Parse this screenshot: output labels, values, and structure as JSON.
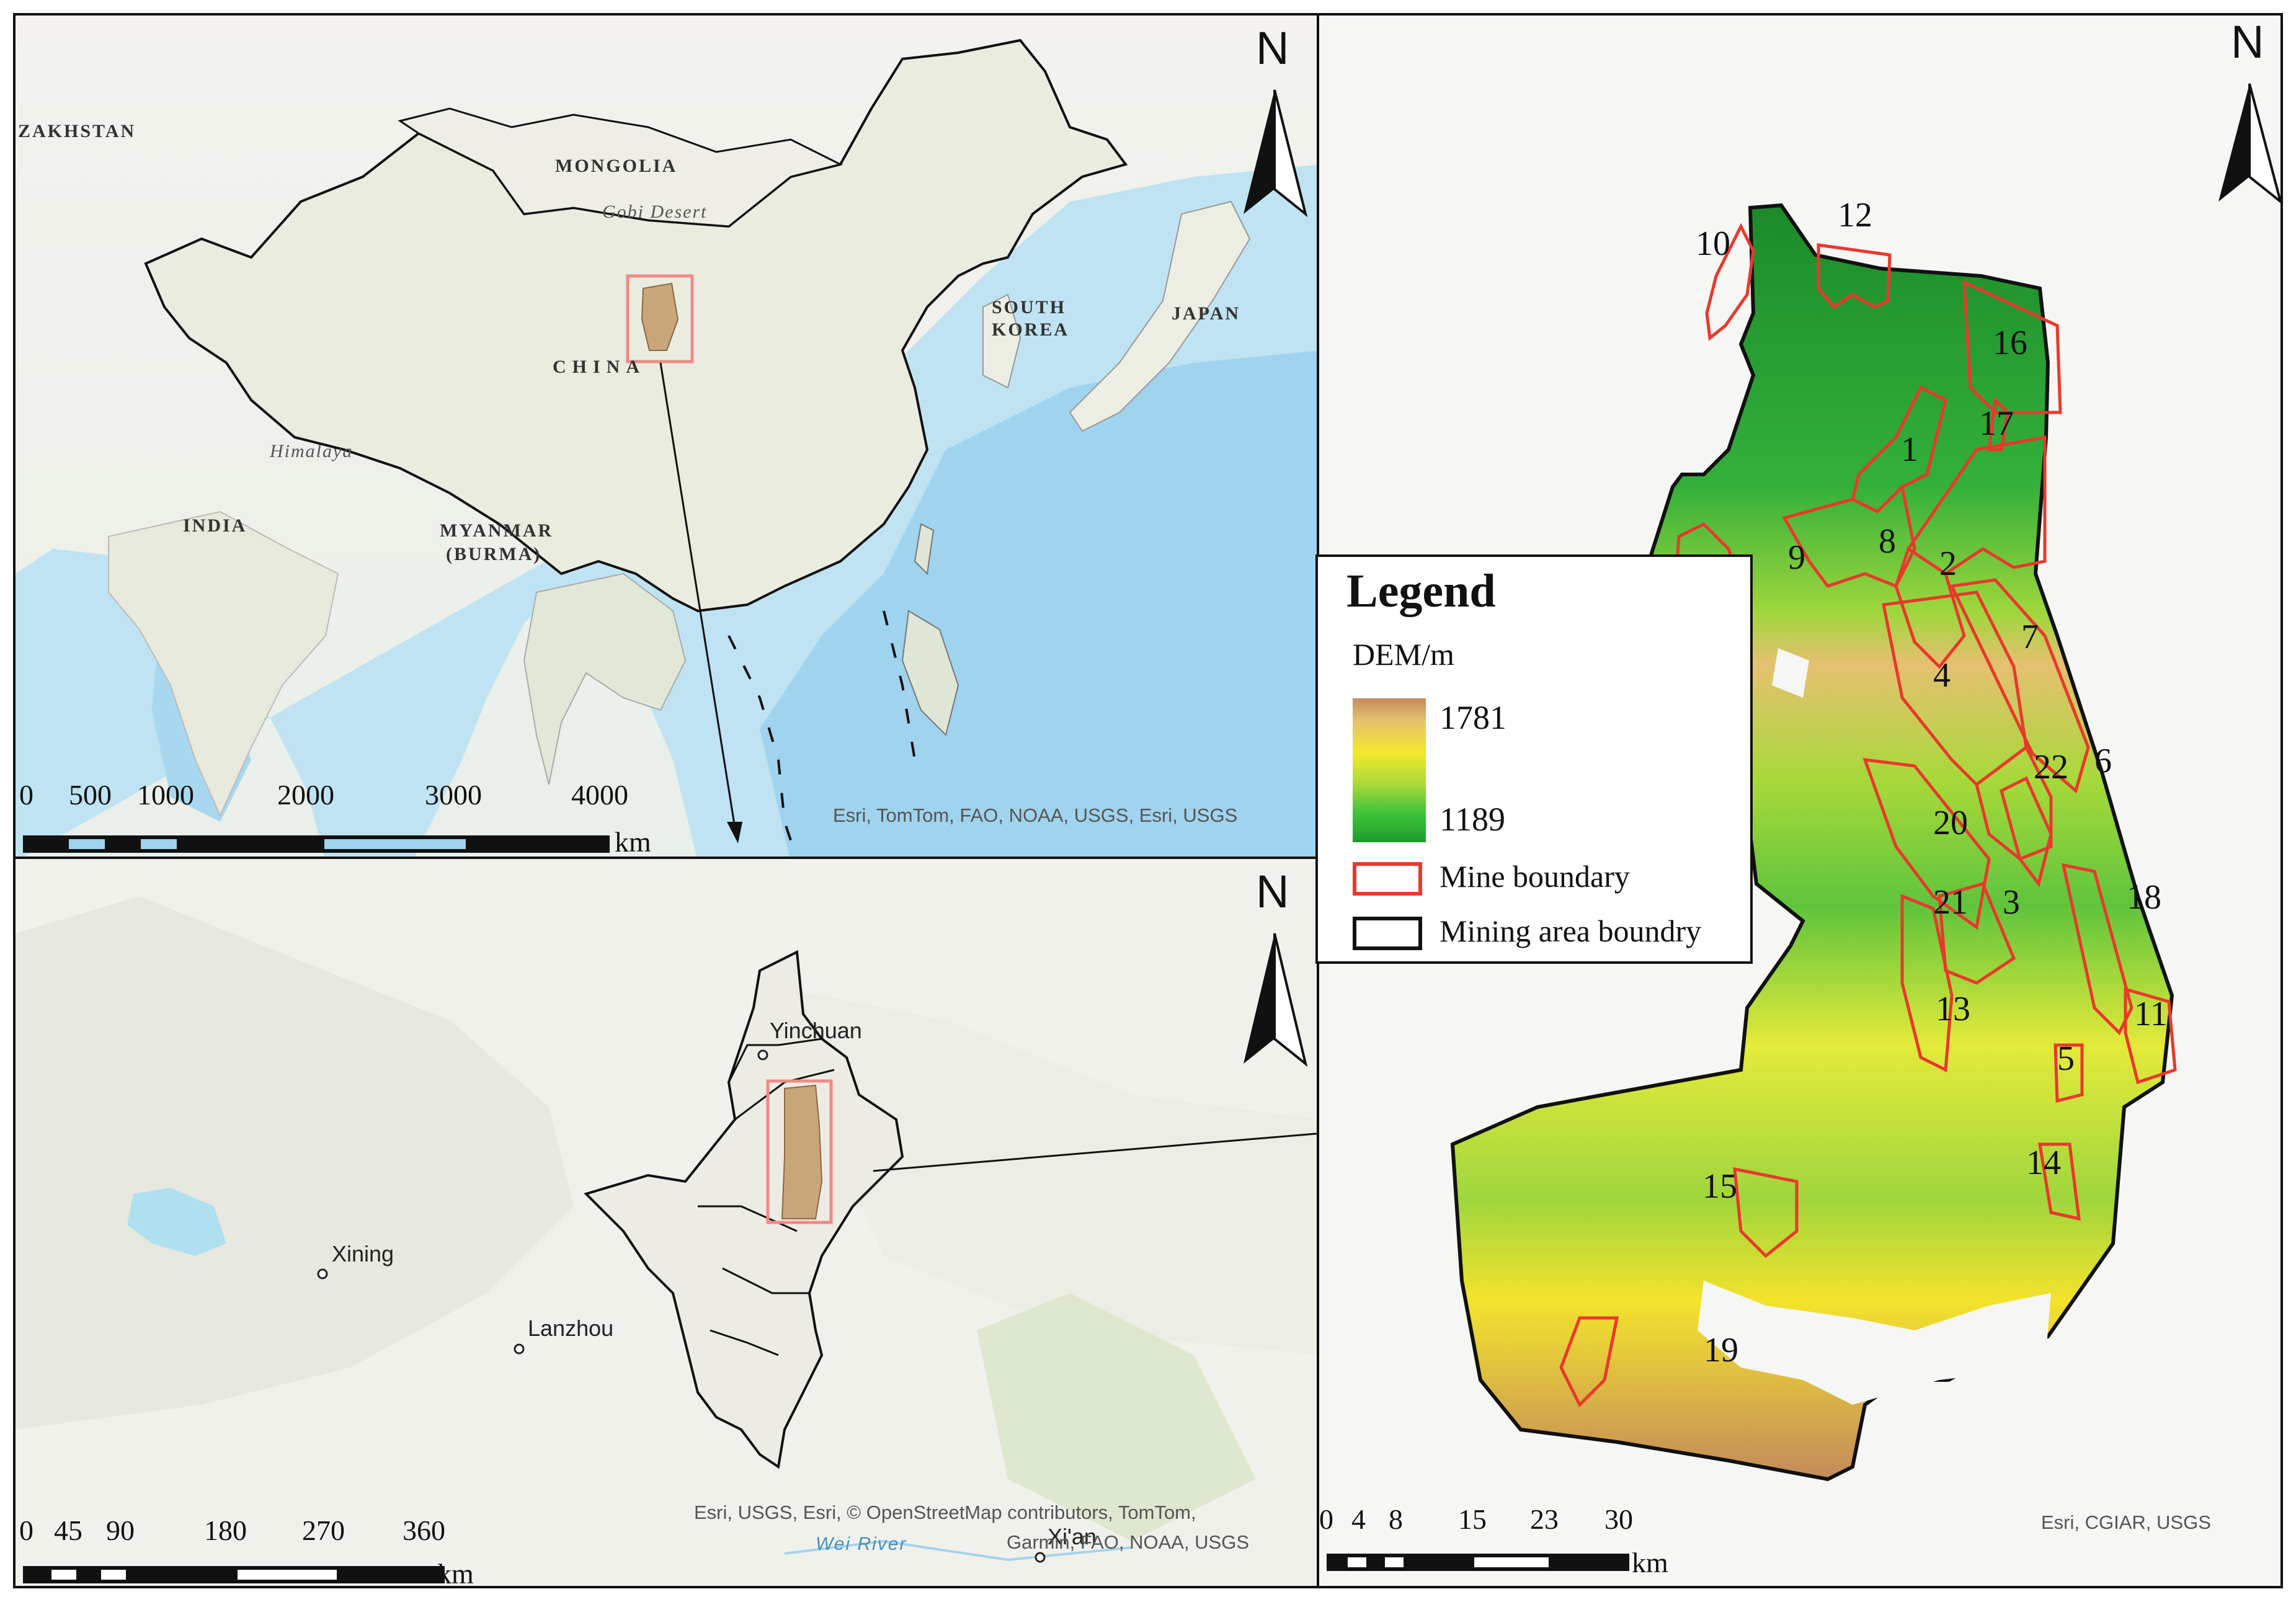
{
  "top_map": {
    "country_labels": [
      "ZAKHSTAN",
      "MONGOLIA",
      "CHINA",
      "SOUTH",
      "KOREA",
      "JAPAN",
      "INDIA",
      "MYANMAR",
      "(BURMA)"
    ],
    "features": [
      "Gobi Desert",
      "Himalaya"
    ],
    "north": "N",
    "scale": {
      "ticks": [
        "0",
        "500",
        "1000",
        "2000",
        "3000",
        "4000"
      ],
      "unit": "km"
    },
    "credit": "Esri, TomTom, FAO, NOAA, USGS, Esri, USGS"
  },
  "bottom_map": {
    "cities": [
      "Yinchuan",
      "Xining",
      "Lanzhou",
      "Xi'an"
    ],
    "river": "Wei River",
    "north": "N",
    "scale": {
      "ticks": [
        "0",
        "45",
        "90",
        "180",
        "270",
        "360"
      ],
      "unit": "km"
    },
    "credit_line1": "Esri, USGS, Esri, © OpenStreetMap contributors, TomTom,",
    "credit_line2": "Garmin, FAO, NOAA, USGS"
  },
  "right_map": {
    "north": "N",
    "mine_numbers": [
      "1",
      "2",
      "3",
      "4",
      "5",
      "6",
      "7",
      "8",
      "9",
      "10",
      "11",
      "12",
      "13",
      "14",
      "15",
      "16",
      "17",
      "18",
      "19",
      "20",
      "21",
      "22"
    ],
    "scale": {
      "ticks": [
        "0",
        "4",
        "8",
        "15",
        "23",
        "30"
      ],
      "unit": "km"
    },
    "credit": "Esri, CGIAR, USGS"
  },
  "legend": {
    "title": "Legend",
    "dem_label": "DEM/m",
    "dem_max": "1781",
    "dem_min": "1189",
    "mine_boundary": "Mine boundary",
    "mining_area_boundary": "Mining area boundry",
    "colors": {
      "mine_boundary": "#e8392c",
      "mining_area_boundary": "#111111",
      "dem_high": "#c38a5c",
      "dem_mid": "#f5e82c",
      "dem_low": "#1c9c2c"
    }
  }
}
